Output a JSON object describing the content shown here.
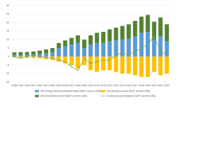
{
  "chart_data": {
    "type": "bar",
    "categories": [
      "1998",
      "1999",
      "2000",
      "2001",
      "2002",
      "2003",
      "2004",
      "2005",
      "2006",
      "2007",
      "2008",
      "2009",
      "2010",
      "2011",
      "2012",
      "2013",
      "2014",
      "2015",
      "2016",
      "2017",
      "2018",
      "2019",
      "2020",
      "2021",
      "2022"
    ],
    "series": [
      {
        "name": "Net foreign direct investment inflow (BoP, current US$)",
        "color": "#5b9bd5",
        "values": [
          1,
          1,
          1,
          1.2,
          1.5,
          2,
          2.5,
          5,
          6,
          7,
          8,
          5,
          7,
          8,
          8,
          9,
          9.5,
          10,
          10.5,
          12,
          14,
          14.5,
          10,
          12,
          9
        ]
      },
      {
        "name": "Net primary income (BoP, current US$)",
        "color": "#ffc000",
        "values": [
          -0.5,
          -0.6,
          -0.7,
          -0.8,
          -1,
          -1.5,
          -2,
          -3,
          -4,
          -5,
          -7,
          -5,
          -8,
          -9,
          -8,
          -8,
          -9,
          -10,
          -10,
          -11,
          -12,
          -12,
          -9,
          -11,
          -10
        ]
      },
      {
        "name": "Net secondary income (BoP, current US$)",
        "color": "#548235",
        "values": [
          1.5,
          1.6,
          1.7,
          1.8,
          2,
          2.2,
          2.5,
          3,
          3.5,
          4,
          4.5,
          5,
          5.5,
          6,
          6.5,
          7,
          7.5,
          8,
          8.5,
          9,
          9.5,
          10,
          10.5,
          11,
          10
        ]
      },
      {
        "name": "Current account balance (BoP, current US$)",
        "color": "#70ad47",
        "line": true,
        "values": [
          0,
          -1,
          0,
          1,
          0,
          -0.5,
          -1,
          -2,
          -3,
          -6,
          -8,
          -1,
          -4,
          -3,
          -2,
          -2,
          1,
          2,
          1,
          3,
          5,
          7,
          12,
          3,
          1
        ]
      }
    ],
    "ylim": [
      -15,
      30
    ],
    "yticks": [
      -15,
      -10,
      -5,
      0,
      5,
      10,
      15,
      20,
      25,
      30
    ],
    "grid": true
  }
}
